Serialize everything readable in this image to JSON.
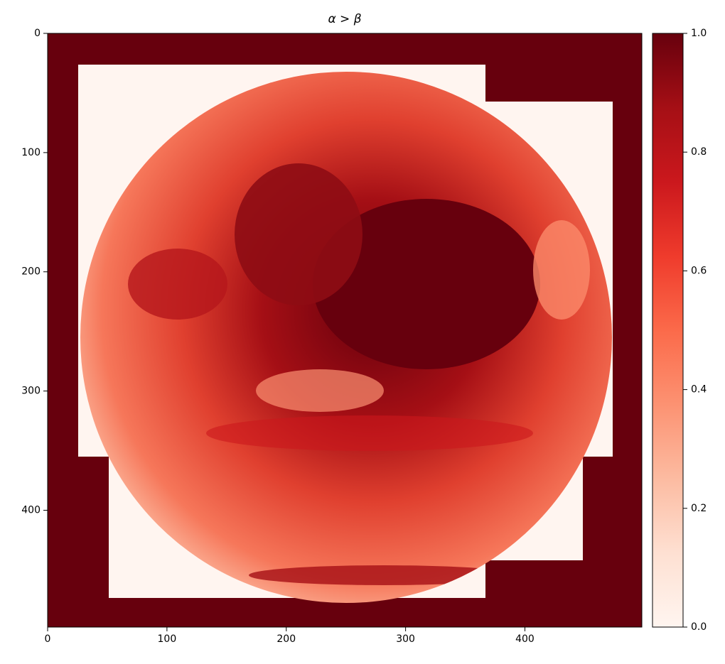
{
  "chart_data": {
    "type": "image",
    "title": "α > β",
    "xlim": [
      0,
      498
    ],
    "ylim": [
      498,
      0
    ],
    "xticks": [
      0,
      100,
      200,
      300,
      400
    ],
    "yticks": [
      0,
      100,
      200,
      300,
      400
    ],
    "colorbar": {
      "lim": [
        0,
        1
      ],
      "ticks": [
        {
          "value": 0,
          "label": "0.0"
        },
        0.2,
        0.4,
        0.6,
        0.8,
        {
          "value": 1,
          "label": "1.0"
        }
      ],
      "colors": [
        "#fff5f0",
        "#fee0d2",
        "#fcbba1",
        "#fc9272",
        "#fb6a4a",
        "#ef3b2c",
        "#cb181d",
        "#a50f15",
        "#67000d"
      ]
    }
  }
}
